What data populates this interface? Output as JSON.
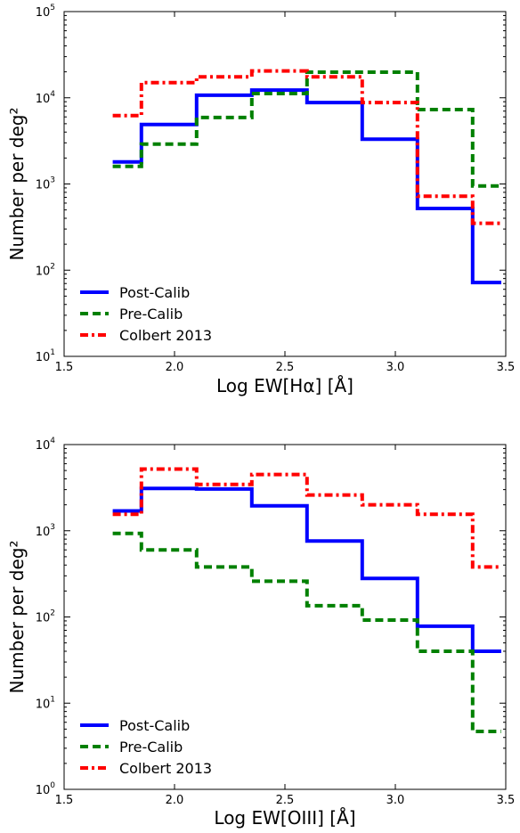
{
  "chart_data": [
    {
      "type": "step",
      "xlabel": "Log EW[Hα] [Å]",
      "ylabel": "Number per deg²",
      "xlim": [
        1.5,
        3.5
      ],
      "ylim": [
        10,
        100000
      ],
      "yscale": "log",
      "xticks": [
        "1.5",
        "2.0",
        "2.5",
        "3.0",
        "3.5"
      ],
      "yticks": [
        {
          "base": "10",
          "exp": "1"
        },
        {
          "base": "10",
          "exp": "2"
        },
        {
          "base": "10",
          "exp": "3"
        },
        {
          "base": "10",
          "exp": "4"
        },
        {
          "base": "10",
          "exp": "5"
        }
      ],
      "legend_position": "lower-left",
      "series": [
        {
          "name": "Post-Calib",
          "color": "#0000ff",
          "style": "solid",
          "edges": [
            1.72,
            1.85,
            2.1,
            2.35,
            2.6,
            2.85,
            3.1,
            3.35,
            3.48
          ],
          "values": [
            1800,
            4900,
            10700,
            12300,
            8800,
            3300,
            520,
            72
          ]
        },
        {
          "name": "Pre-Calib",
          "color": "#008000",
          "style": "dashed",
          "edges": [
            1.72,
            1.85,
            2.1,
            2.35,
            2.6,
            2.85,
            3.1,
            3.35,
            3.48
          ],
          "values": [
            1600,
            2900,
            5900,
            11200,
            19800,
            19800,
            7300,
            950
          ]
        },
        {
          "name": "Colbert 2013",
          "color": "#ff0000",
          "style": "dashdot",
          "edges": [
            1.72,
            1.85,
            2.1,
            2.35,
            2.6,
            2.85,
            3.1,
            3.35,
            3.48
          ],
          "values": [
            6200,
            15000,
            17500,
            20500,
            17500,
            8800,
            720,
            350
          ]
        }
      ]
    },
    {
      "type": "step",
      "xlabel": "Log EW[OIII] [Å]",
      "ylabel": "Number per deg²",
      "xlim": [
        1.5,
        3.5
      ],
      "ylim": [
        1,
        10000
      ],
      "yscale": "log",
      "xticks": [
        "1.5",
        "2.0",
        "2.5",
        "3.0",
        "3.5"
      ],
      "yticks": [
        {
          "base": "10",
          "exp": "0"
        },
        {
          "base": "10",
          "exp": "1"
        },
        {
          "base": "10",
          "exp": "2"
        },
        {
          "base": "10",
          "exp": "3"
        },
        {
          "base": "10",
          "exp": "4"
        }
      ],
      "legend_position": "lower-left",
      "series": [
        {
          "name": "Post-Calib",
          "color": "#0000ff",
          "style": "solid",
          "edges": [
            1.72,
            1.85,
            2.1,
            2.35,
            2.6,
            2.85,
            3.1,
            3.35,
            3.48
          ],
          "values": [
            1700,
            3100,
            3050,
            1950,
            760,
            280,
            78,
            40
          ]
        },
        {
          "name": "Pre-Calib",
          "color": "#008000",
          "style": "dashed",
          "edges": [
            1.72,
            1.85,
            2.1,
            2.35,
            2.6,
            2.85,
            3.1,
            3.35,
            3.48
          ],
          "values": [
            930,
            600,
            380,
            260,
            135,
            92,
            40,
            4.7
          ]
        },
        {
          "name": "Colbert 2013",
          "color": "#ff0000",
          "style": "dashdot",
          "edges": [
            1.72,
            1.85,
            2.1,
            2.35,
            2.6,
            2.85,
            3.1,
            3.35,
            3.48
          ],
          "values": [
            1550,
            5200,
            3450,
            4500,
            2600,
            2000,
            1550,
            380
          ]
        }
      ]
    }
  ]
}
